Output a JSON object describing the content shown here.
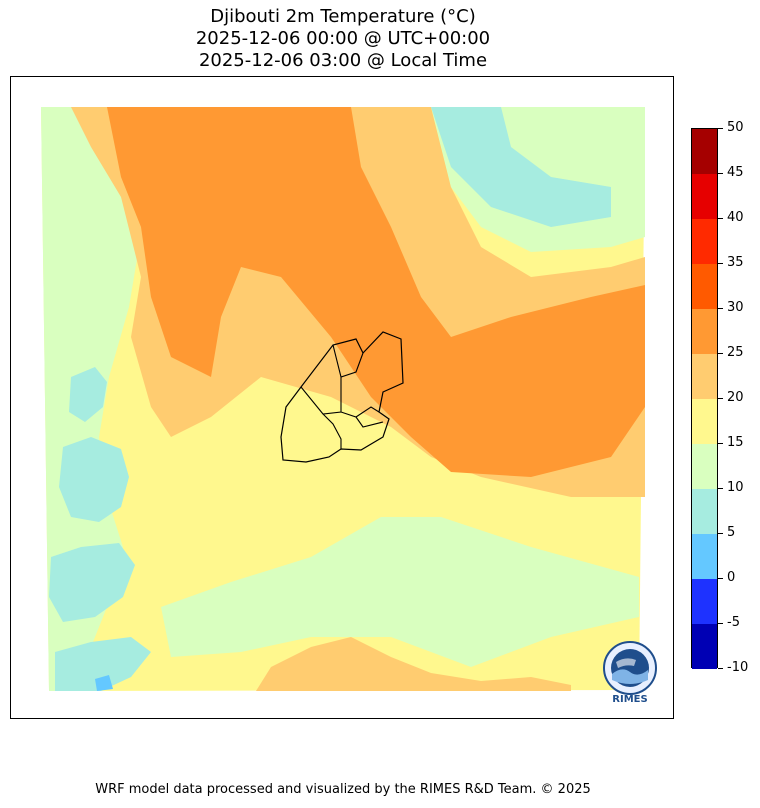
{
  "title": {
    "line1": "Djibouti 2m Temperature (°C)",
    "line2": "2025-12-06 00:00 @ UTC+00:00",
    "line3": "2025-12-06 03:00 @ Local Time"
  },
  "colorbar": {
    "levels": [
      "-10",
      "-5",
      "0",
      "5",
      "10",
      "15",
      "20",
      "25",
      "30",
      "35",
      "40",
      "45",
      "50"
    ],
    "colors": [
      "#0000b4",
      "#1e32ff",
      "#64c8ff",
      "#a6ece0",
      "#d9ffbf",
      "#fff88e",
      "#ffcc70",
      "#ff9933",
      "#ff5a00",
      "#ff2a00",
      "#e60000",
      "#a50000"
    ]
  },
  "logo": {
    "text": "RIMES",
    "icon": "rimes-globe-logo-icon"
  },
  "footer": "WRF model data processed and visualized by the RIMES R&D Team. © 2025"
}
